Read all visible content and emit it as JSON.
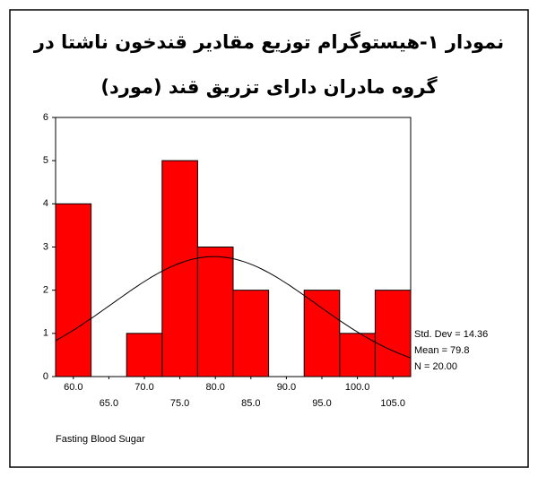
{
  "chart_data": {
    "type": "histogram",
    "title": [
      "نمودار ١-هیستوگرام توزیع مقادیر قندخون ناشتا در",
      "گروه مادران دارای تزریق قند (مورد)"
    ],
    "x_label": "Fasting Blood Sugar",
    "bins": [
      57.5,
      62.5,
      67.5,
      72.5,
      77.5,
      82.5,
      87.5,
      92.5,
      97.5,
      102.5,
      107.5
    ],
    "values": [
      4,
      0,
      1,
      5,
      3,
      2,
      0,
      2,
      1,
      2
    ],
    "color": "#ff0000",
    "xlim": [
      57.5,
      107.5
    ],
    "xticks": [
      {
        "value": 60,
        "label": "60.0"
      },
      {
        "value": 65,
        "label": "65.0"
      },
      {
        "value": 70,
        "label": "70.0"
      },
      {
        "value": 75,
        "label": "75.0"
      },
      {
        "value": 80,
        "label": "80.0"
      },
      {
        "value": 85,
        "label": "85.0"
      },
      {
        "value": 90,
        "label": "90.0"
      },
      {
        "value": 95,
        "label": "95.0"
      },
      {
        "value": 100,
        "label": "100.0"
      },
      {
        "value": 105,
        "label": "105.0"
      }
    ],
    "ylim": [
      0,
      6
    ],
    "yticks": [
      0,
      1,
      2,
      3,
      4,
      5,
      6
    ],
    "stats": {
      "values": [
        14.36,
        79.8,
        20
      ],
      "value_labels": [
        "Std. Dev = 14.36",
        "Mean = 79.8",
        "N = 20.00"
      ]
    }
  }
}
